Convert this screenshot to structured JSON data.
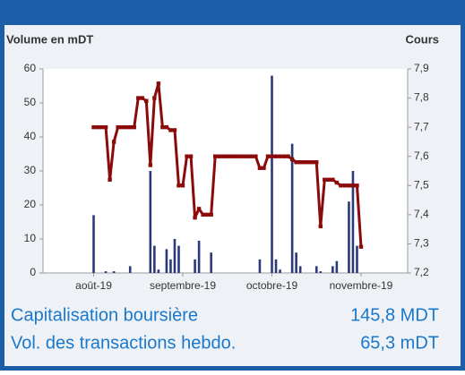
{
  "chart_data": {
    "type": "bar-line",
    "ylabel": "Volume en mDT",
    "y2label": "Cours",
    "categories": [
      null,
      null,
      null,
      null,
      null,
      null,
      null,
      null,
      null,
      null,
      null,
      null,
      "août-19",
      null,
      null,
      null,
      null,
      null,
      null,
      null,
      null,
      null,
      null,
      null,
      null,
      null,
      null,
      null,
      null,
      null,
      null,
      null,
      null,
      null,
      "septembre-19",
      null,
      null,
      null,
      null,
      null,
      null,
      null,
      null,
      null,
      null,
      null,
      null,
      null,
      null,
      null,
      null,
      null,
      null,
      null,
      null,
      null,
      "octobre-19",
      null,
      null,
      null,
      null,
      null,
      null,
      null,
      null,
      null,
      null,
      null,
      null,
      null,
      null,
      null,
      null,
      null,
      null,
      null,
      null,
      null,
      "novembre-19",
      null,
      null,
      null,
      null,
      null,
      null,
      null,
      null,
      null,
      null,
      null
    ],
    "series": [
      {
        "type": "bar",
        "color": "#2b3a7a",
        "values": [
          0,
          0,
          0,
          0,
          0,
          0,
          0,
          0,
          0,
          0,
          0,
          0,
          17,
          0,
          0,
          0.5,
          0,
          0.5,
          0,
          0,
          0,
          2,
          0,
          0,
          0,
          0,
          30,
          8,
          1,
          0,
          7,
          4,
          10,
          8,
          0,
          0,
          0,
          4,
          9.5,
          0,
          0,
          6,
          0,
          0,
          0,
          0,
          0,
          0,
          0,
          0,
          0,
          0,
          0,
          4,
          0,
          0,
          58,
          4,
          1,
          0,
          0,
          38,
          6,
          2,
          0,
          0,
          0,
          2,
          0.5,
          0,
          0,
          2,
          3.5,
          0,
          0,
          21,
          30,
          8,
          0,
          0,
          0,
          0,
          0,
          0,
          0,
          0,
          0,
          0,
          0,
          0
        ]
      },
      {
        "type": "line",
        "axis": "y2",
        "color": "#8b0a0a",
        "values": [
          null,
          null,
          null,
          null,
          null,
          null,
          null,
          null,
          null,
          null,
          null,
          null,
          7.7,
          7.7,
          7.7,
          7.7,
          7.52,
          7.65,
          7.7,
          7.7,
          7.7,
          7.7,
          7.7,
          7.8,
          7.8,
          7.79,
          7.57,
          7.8,
          7.85,
          7.7,
          7.7,
          7.69,
          7.69,
          7.5,
          7.5,
          7.6,
          7.6,
          7.39,
          7.42,
          7.4,
          7.4,
          7.4,
          7.6,
          7.6,
          7.6,
          7.6,
          7.6,
          7.6,
          7.6,
          7.6,
          7.6,
          7.6,
          7.6,
          7.56,
          7.56,
          7.6,
          7.6,
          7.6,
          7.6,
          7.6,
          7.6,
          7.59,
          7.58,
          7.58,
          7.58,
          7.58,
          7.58,
          7.58,
          7.36,
          7.52,
          7.52,
          7.52,
          7.51,
          7.5,
          7.5,
          7.5,
          7.5,
          7.5,
          7.29,
          null,
          null,
          null,
          null,
          null,
          null,
          null,
          null,
          null,
          null,
          null
        ]
      }
    ],
    "ylim": [
      0,
      60
    ],
    "yticks": [
      0,
      10,
      20,
      30,
      40,
      50,
      60
    ],
    "y2lim": [
      7.2,
      7.9
    ],
    "y2ticks": [
      {
        "value": 7.2,
        "label": "7,2"
      },
      {
        "value": 7.3,
        "label": "7,3"
      },
      {
        "value": 7.4,
        "label": "7,4"
      },
      {
        "value": 7.5,
        "label": "7,5"
      },
      {
        "value": 7.6,
        "label": "7,6"
      },
      {
        "value": 7.7,
        "label": "7,7"
      },
      {
        "value": 7.8,
        "label": "7,8"
      },
      {
        "value": 7.9,
        "label": "7,9"
      }
    ]
  },
  "stats": [
    {
      "label": "Capitalisation boursière",
      "value": "145,8 MDT"
    },
    {
      "label": "Vol. des transactions hebdo.",
      "value": "65,3 mDT"
    }
  ]
}
